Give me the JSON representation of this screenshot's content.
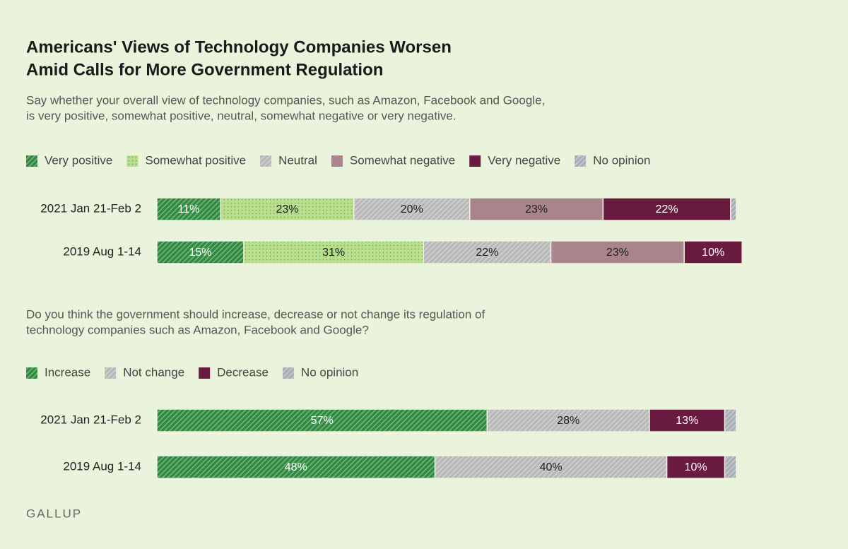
{
  "title": [
    "Americans' Views of Technology Companies Worsen",
    "Amid Calls for More Government Regulation"
  ],
  "source": "GALLUP",
  "chart_data": [
    {
      "type": "stacked-bar",
      "subtitle": [
        "Say whether your overall view of technology companies, such as Amazon, Facebook and Google,",
        "is very positive, somewhat positive, neutral, somewhat negative or very negative."
      ],
      "categories": [
        "2021 Jan 21-Feb 2",
        "2019 Aug 1-14"
      ],
      "xlim": [
        0,
        100
      ],
      "series": [
        {
          "name": "Very positive",
          "color": "#2f8a3f",
          "pattern": "hatch",
          "label_color": "#ffffff",
          "values": [
            11,
            15
          ],
          "value_labels": [
            "11%",
            "15%"
          ]
        },
        {
          "name": "Somewhat positive",
          "color": "#b9df8f",
          "pattern": "dots",
          "label_color": "#222222",
          "values": [
            23,
            31
          ],
          "value_labels": [
            "23%",
            "31%"
          ]
        },
        {
          "name": "Neutral",
          "color": "#b8b8b8",
          "pattern": "hatch",
          "label_color": "#222222",
          "values": [
            20,
            22
          ],
          "value_labels": [
            "20%",
            "22%"
          ]
        },
        {
          "name": "Somewhat negative",
          "color": "#a9848d",
          "pattern": "none",
          "label_color": "#222222",
          "values": [
            23,
            23
          ],
          "value_labels": [
            "23%",
            "23%"
          ]
        },
        {
          "name": "Very negative",
          "color": "#6a1c40",
          "pattern": "none",
          "label_color": "#ffffff",
          "values": [
            22,
            10
          ],
          "value_labels": [
            "22%",
            "10%"
          ]
        },
        {
          "name": "No opinion",
          "color": "#a9adb5",
          "pattern": "hatch",
          "label_color": "#222222",
          "values": [
            1,
            0
          ],
          "value_labels": [
            null,
            null
          ]
        }
      ]
    },
    {
      "type": "stacked-bar",
      "subtitle": [
        "Do you think the government should increase, decrease or not change its regulation of",
        "technology companies such as Amazon, Facebook and Google?"
      ],
      "categories": [
        "2021 Jan 21-Feb 2",
        "2019 Aug 1-14"
      ],
      "xlim": [
        0,
        100
      ],
      "series": [
        {
          "name": "Increase",
          "color": "#2f8a3f",
          "pattern": "hatch",
          "label_color": "#ffffff",
          "values": [
            57,
            48
          ],
          "value_labels": [
            "57%",
            "48%"
          ]
        },
        {
          "name": "Not change",
          "color": "#b8b8b8",
          "pattern": "hatch",
          "label_color": "#222222",
          "values": [
            28,
            40
          ],
          "value_labels": [
            "28%",
            "40%"
          ]
        },
        {
          "name": "Decrease",
          "color": "#6a1c40",
          "pattern": "none",
          "label_color": "#ffffff",
          "values": [
            13,
            10
          ],
          "value_labels": [
            "13%",
            "10%"
          ]
        },
        {
          "name": "No opinion",
          "color": "#a9adb5",
          "pattern": "hatch",
          "label_color": "#222222",
          "values": [
            2,
            2
          ],
          "value_labels": [
            null,
            null
          ]
        }
      ]
    }
  ]
}
